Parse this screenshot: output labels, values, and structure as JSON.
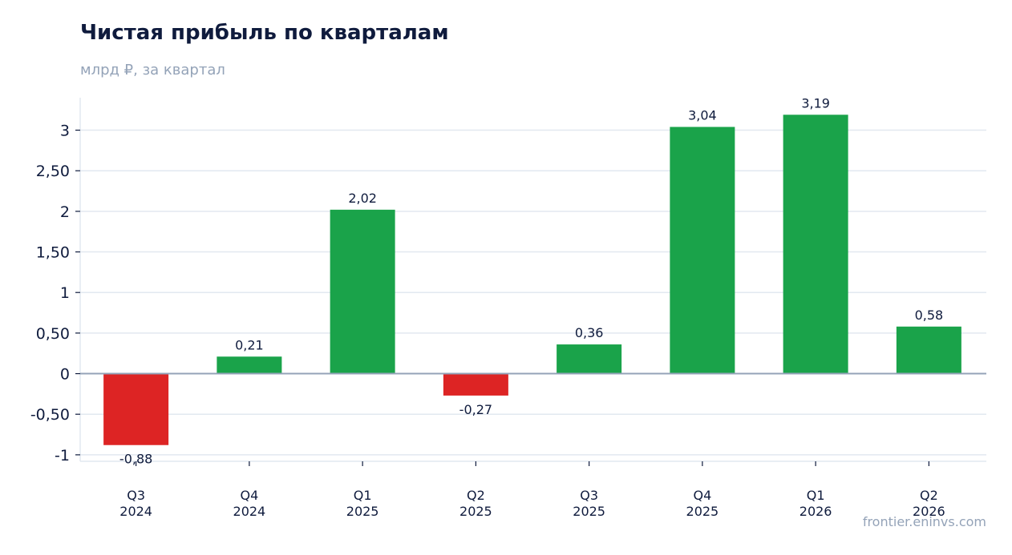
{
  "header": {
    "title": "Чистая прибыль по кварталам",
    "subtitle": "млрд ₽, за квартал"
  },
  "footer": {
    "source": "frontier.eninvs.com"
  },
  "colors": {
    "positive": "#1aa34a",
    "negative": "#dd2424",
    "grid": "#e2e8f0",
    "zero_line": "#94a3b8",
    "text": "#0f1b3d"
  },
  "chart_data": {
    "type": "bar",
    "title": "Чистая прибыль по кварталам",
    "subtitle": "млрд ₽, за квартал",
    "xlabel": "",
    "ylabel": "",
    "categories": [
      [
        "Q3",
        "2024"
      ],
      [
        "Q4",
        "2024"
      ],
      [
        "Q1",
        "2025"
      ],
      [
        "Q2",
        "2025"
      ],
      [
        "Q3",
        "2025"
      ],
      [
        "Q4",
        "2025"
      ],
      [
        "Q1",
        "2026"
      ],
      [
        "Q2",
        "2026"
      ]
    ],
    "values": [
      -0.88,
      0.21,
      2.02,
      -0.27,
      0.36,
      3.04,
      3.19,
      0.58
    ],
    "value_labels": [
      "-0,88",
      "0,21",
      "2,02",
      "-0,27",
      "0,36",
      "3,04",
      "3,19",
      "0,58"
    ],
    "yticks": [
      -1,
      -0.5,
      0,
      0.5,
      1,
      1.5,
      2,
      2.5,
      3
    ],
    "ytick_labels": [
      "-1",
      "-0,50",
      "0",
      "0,50",
      "1",
      "1,50",
      "2",
      "2,50",
      "3"
    ],
    "ylim": [
      -1.08,
      3.4
    ],
    "grid": true,
    "legend": "none"
  }
}
